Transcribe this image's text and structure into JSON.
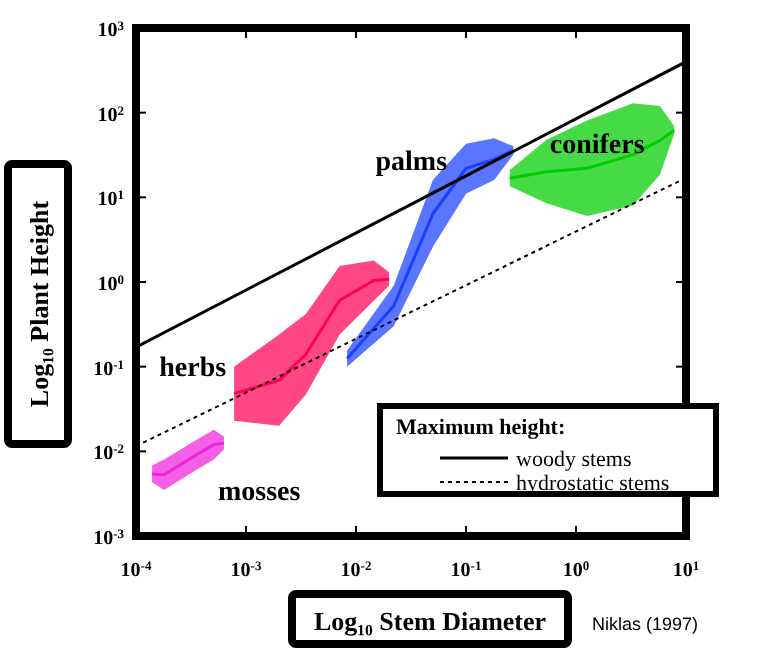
{
  "chart_data": {
    "type": "line",
    "xlabel": "Log₁₀ Stem Diameter",
    "ylabel": "Log₁₀ Plant Height",
    "log": "xy",
    "grid": false,
    "marker": "none",
    "legend": "bottom right",
    "legend_title": "Maximum height:",
    "xlim": [
      0.0001,
      10
    ],
    "ylim": [
      0.001,
      1000
    ],
    "xticks": [
      {
        "value": 0.0001,
        "label": "10$^{-4}$"
      },
      {
        "value": 0.001,
        "label": "10$^{-3}$"
      },
      {
        "value": 0.01,
        "label": "10$^{-2}$"
      },
      {
        "value": 0.1,
        "label": "10$^{-1}$"
      },
      {
        "value": 1,
        "label": "10$^{0}$"
      },
      {
        "value": 10,
        "label": "10$^{1}$"
      }
    ],
    "yticks": [
      {
        "value": 0.001,
        "label": "10$^{-3}$"
      },
      {
        "value": 0.01,
        "label": "10$^{-2}$"
      },
      {
        "value": 0.1,
        "label": "10$^{-1}$"
      },
      {
        "value": 1,
        "label": "10$^{0}$"
      },
      {
        "value": 10,
        "label": "10$^{1}$"
      },
      {
        "value": 100,
        "label": "10$^{2}$"
      },
      {
        "value": 1000,
        "label": "10$^{3}$"
      }
    ],
    "series": [
      {
        "name": "mosses",
        "color": "#ee22dd",
        "x": [
          0.00014,
          0.00018,
          0.00032,
          0.00051,
          0.00063
        ],
        "values": [
          0.0054,
          0.0053,
          0.0084,
          0.012,
          0.0125
        ],
        "lower": [
          0.0043,
          0.0035,
          0.0056,
          0.008,
          0.0105
        ],
        "upper": [
          0.0068,
          0.008,
          0.0126,
          0.018,
          0.015
        ]
      },
      {
        "name": "herbs",
        "color": "#ff0055",
        "x": [
          0.00078,
          0.002,
          0.0035,
          0.0071,
          0.0145,
          0.02
        ],
        "values": [
          0.048,
          0.069,
          0.14,
          0.61,
          1.04,
          1.08
        ],
        "lower": [
          0.023,
          0.02,
          0.047,
          0.24,
          0.6,
          0.9
        ],
        "upper": [
          0.1,
          0.24,
          0.42,
          1.55,
          1.8,
          1.3
        ]
      },
      {
        "name": "palms",
        "color": "#1a40ff",
        "x": [
          0.0083,
          0.022,
          0.05,
          0.1,
          0.18,
          0.27
        ],
        "values": [
          0.125,
          0.52,
          6.4,
          22,
          28,
          36
        ],
        "lower": [
          0.1,
          0.3,
          2.6,
          11,
          16,
          32
        ],
        "upper": [
          0.155,
          0.9,
          16,
          43,
          50,
          40
        ]
      },
      {
        "name": "conifers",
        "color": "#00cc00",
        "x": [
          0.25,
          0.54,
          1.26,
          3.3,
          5.8,
          7.8
        ],
        "values": [
          16.8,
          20,
          22,
          32,
          47,
          62
        ],
        "lower": [
          13.5,
          8.5,
          6,
          8,
          18.6,
          56
        ],
        "upper": [
          21,
          48,
          81,
          129,
          120,
          69
        ]
      },
      {
        "name": "woody stems",
        "color": "#000000",
        "line_style": "solid",
        "x": [
          0.0001,
          10
        ],
        "values": [
          0.17,
          400
        ]
      },
      {
        "name": "hydrostatic stems",
        "color": "#000000",
        "line_style": "dotted",
        "x": [
          0.0001,
          10
        ],
        "values": [
          0.0115,
          17
        ]
      }
    ],
    "annotations": [
      "Niklas (1997)"
    ]
  }
}
